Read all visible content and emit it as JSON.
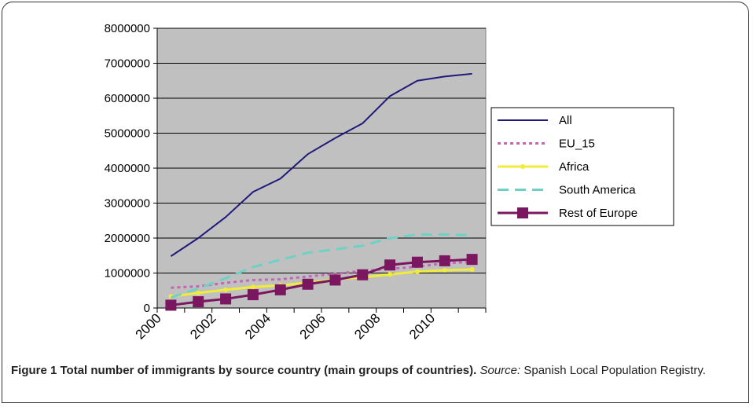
{
  "chart_data": {
    "type": "line",
    "x": [
      2000.5,
      2001.5,
      2002.5,
      2003.5,
      2004.5,
      2005.5,
      2006.5,
      2007.5,
      2008.5,
      2009.5,
      2010.5,
      2011.5
    ],
    "xticks": [
      "2000",
      "2002",
      "2004",
      "2006",
      "2008",
      "2010"
    ],
    "xlim": [
      2000,
      2012
    ],
    "ylim": [
      0,
      8000000
    ],
    "yticks": [
      "0",
      "1000000",
      "2000000",
      "3000000",
      "4000000",
      "5000000",
      "6000000",
      "7000000",
      "8000000"
    ],
    "grid": true,
    "legend_position": "right",
    "series": [
      {
        "name": "All",
        "color": "#1f1a7a",
        "style": "solid",
        "values": [
          1480000,
          2000000,
          2600000,
          3320000,
          3700000,
          4400000,
          4860000,
          5280000,
          6060000,
          6500000,
          6620000,
          6700000
        ]
      },
      {
        "name": "EU_15",
        "color": "#c466b8",
        "style": "dotted",
        "values": [
          580000,
          620000,
          720000,
          800000,
          820000,
          900000,
          980000,
          1060000,
          1120000,
          1180000,
          1280000,
          1320000
        ]
      },
      {
        "name": "Africa",
        "color": "#f0ec38",
        "style": "solid-dot",
        "values": [
          330000,
          430000,
          520000,
          600000,
          650000,
          720000,
          820000,
          880000,
          960000,
          1040000,
          1080000,
          1100000
        ]
      },
      {
        "name": "South America",
        "color": "#6fd1c4",
        "style": "dashed",
        "values": [
          300000,
          560000,
          850000,
          1170000,
          1380000,
          1580000,
          1680000,
          1780000,
          2000000,
          2100000,
          2100000,
          2080000
        ]
      },
      {
        "name": "Rest of Europe",
        "color": "#7a1760",
        "style": "solid-square",
        "values": [
          80000,
          180000,
          260000,
          380000,
          520000,
          680000,
          800000,
          950000,
          1230000,
          1310000,
          1350000,
          1390000
        ]
      }
    ]
  },
  "caption": {
    "figure_bold": "Figure 1 Total number of immigrants by source country (main groups of countries).",
    "source_label": "Source:",
    "source_text": "Spanish Local Population Registry."
  }
}
